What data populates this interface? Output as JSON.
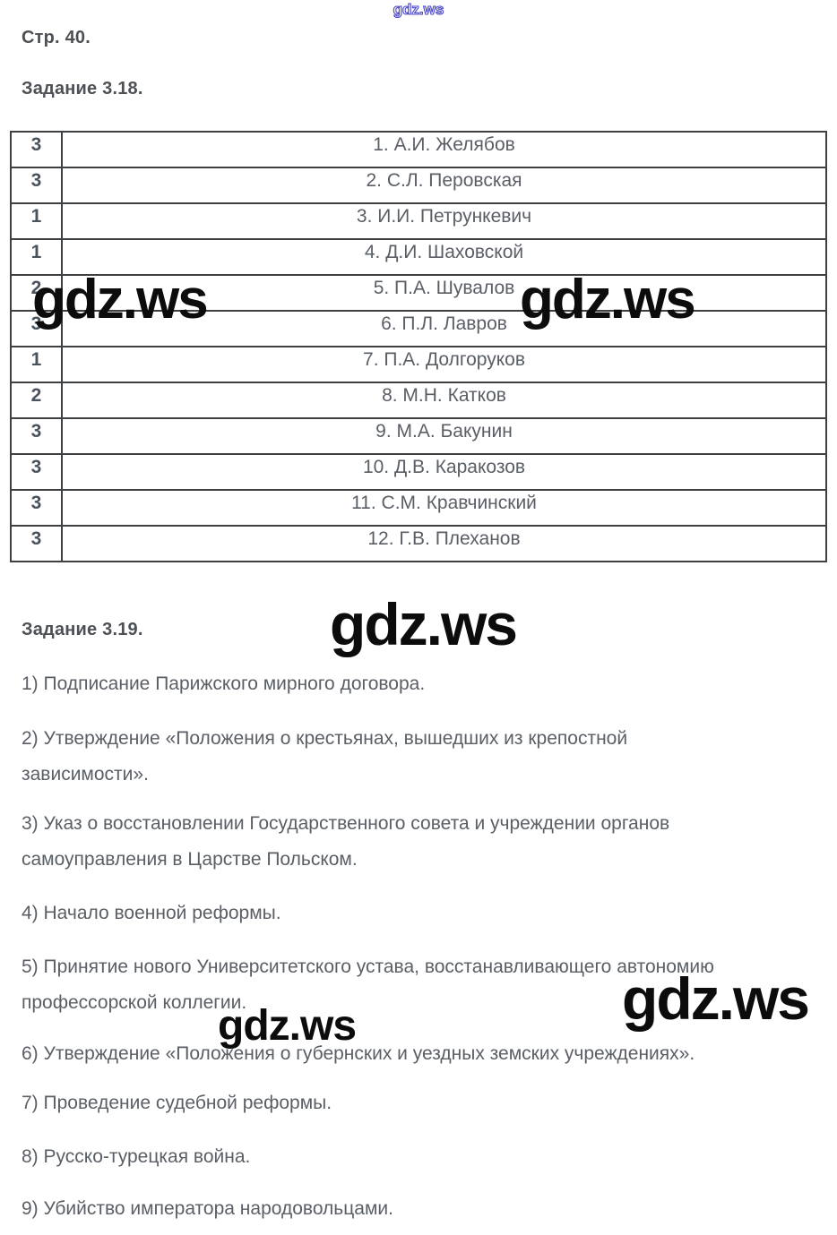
{
  "page": {
    "page_label": "Стр. 40.",
    "task318_heading": "Задание 3.18.",
    "task319_heading": "Задание 3.19."
  },
  "watermark": {
    "text": "gdz.ws",
    "outline_color": "#4b48c6",
    "black_color": "#0c0c0c"
  },
  "colors": {
    "body_text": "#5a5f66",
    "heading_text": "#4d5156",
    "table_border": "#3e4144"
  },
  "table": {
    "rows": [
      {
        "score": "3",
        "name": "1. А.И. Желябов"
      },
      {
        "score": "3",
        "name": "2. С.Л. Перовская"
      },
      {
        "score": "1",
        "name": "3. И.И. Петрункевич"
      },
      {
        "score": "1",
        "name": "4. Д.И. Шаховской"
      },
      {
        "score": "2",
        "name": "5. П.А. Шувалов"
      },
      {
        "score": "3",
        "name": "6. П.Л. Лавров"
      },
      {
        "score": "1",
        "name": "7. П.А. Долгоруков"
      },
      {
        "score": "2",
        "name": "8. М.Н. Катков"
      },
      {
        "score": "3",
        "name": "9. М.А. Бакунин"
      },
      {
        "score": "3",
        "name": "10. Д.В. Каракозов"
      },
      {
        "score": "3",
        "name": "11. С.М. Кравчинский"
      },
      {
        "score": "3",
        "name": "12. Г.В. Плеханов"
      }
    ]
  },
  "task319_items": [
    "1) Подписание Парижского мирного договора.",
    "2) Утверждение «Положения о крестьянах, вышедших из крепостной\nзависимости».",
    "3) Указ о восстановлении Государственного совета и учреждении органов\nсамоуправления в Царстве Польском.",
    "4) Начало военной реформы.",
    "5) Принятие нового Университетского устава, восстанавливающего автономию\nпрофессорской коллегии.",
    "6) Утверждение «Положения о губернских и уездных земских учреждениях».",
    "7) Проведение судебной реформы.",
    "8) Русско-турецкая война.",
    "9) Убийство императора народовольцами."
  ]
}
